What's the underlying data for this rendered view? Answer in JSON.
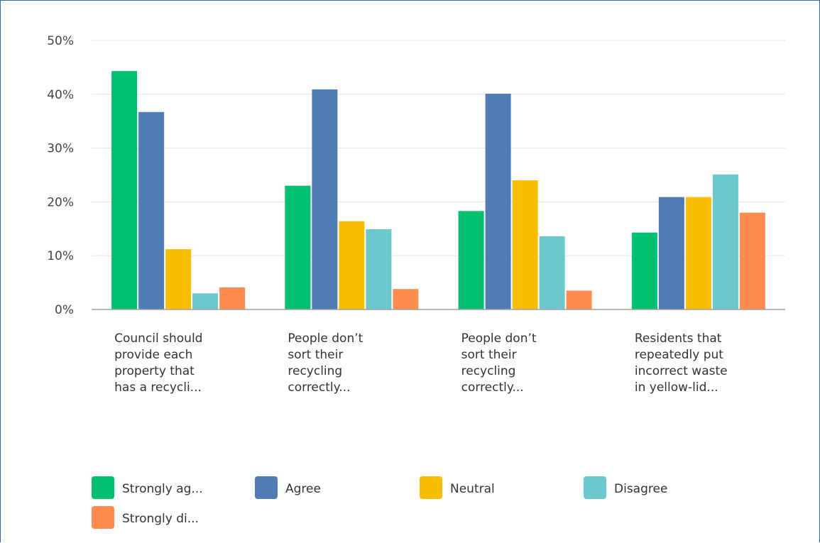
{
  "chart_data": {
    "type": "bar",
    "categories": [
      [
        "Council should",
        "provide each",
        "property that",
        "has a recycli..."
      ],
      [
        "People don’t",
        "sort their",
        "recycling",
        "correctly..."
      ],
      [
        "People don’t",
        "sort their",
        "recycling",
        "correctly..."
      ],
      [
        "Residents that",
        "repeatedly put",
        "incorrect waste",
        "in yellow-lid..."
      ]
    ],
    "series": [
      {
        "name": "Strongly ag...",
        "color": "#00bf6f",
        "values": [
          44.3,
          23.0,
          18.3,
          14.3
        ]
      },
      {
        "name": "Agree",
        "color": "#507cb6",
        "values": [
          36.7,
          40.9,
          40.1,
          20.9
        ]
      },
      {
        "name": "Neutral",
        "color": "#f9be00",
        "values": [
          11.2,
          16.4,
          24.0,
          20.9
        ]
      },
      {
        "name": "Disagree",
        "color": "#6bc8cd",
        "values": [
          3.0,
          14.9,
          13.6,
          25.1
        ]
      },
      {
        "name": "Strongly di...",
        "color": "#ff8b4f",
        "values": [
          4.1,
          3.8,
          3.5,
          18.0
        ]
      }
    ],
    "yticks": [
      "0%",
      "10%",
      "20%",
      "30%",
      "40%",
      "50%"
    ],
    "ylim": [
      0,
      50
    ],
    "grid": true,
    "legend_position": "bottom"
  }
}
